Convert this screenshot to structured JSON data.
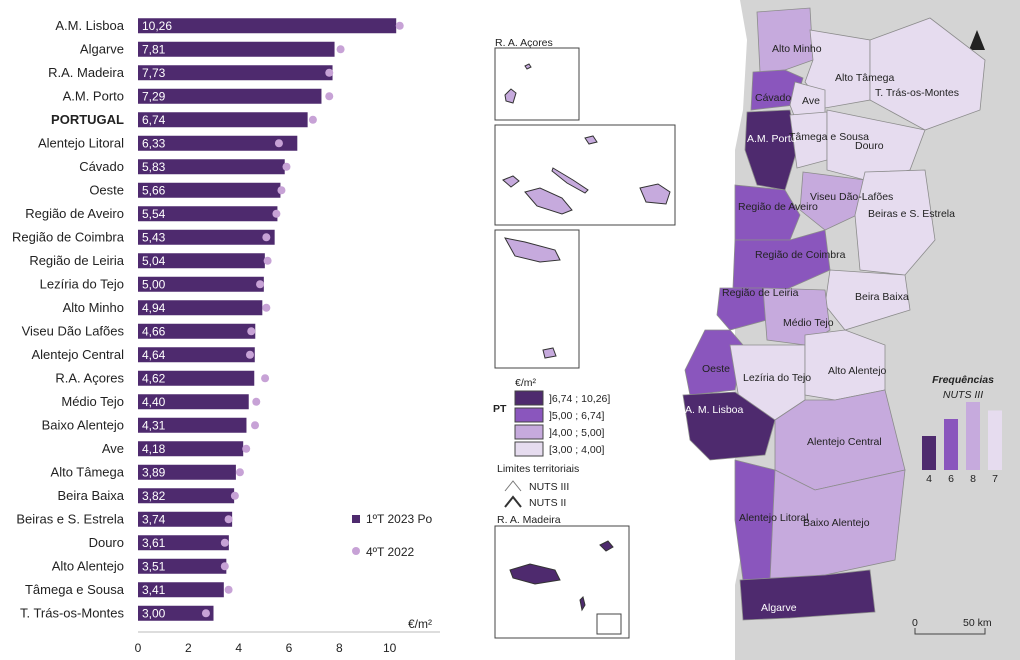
{
  "colors": {
    "bar": "#4e2a6e",
    "dot": "#c7a2d6",
    "class1": "#4e2a6e",
    "class2": "#8a56bd",
    "class3": "#c6aadd",
    "class4": "#e6dcef",
    "sea": "#d4d4d4"
  },
  "chart_data": {
    "type": "bar",
    "orientation": "horizontal",
    "categories": [
      "A.M. Lisboa",
      "Algarve",
      "R.A. Madeira",
      "A.M. Porto",
      "PORTUGAL",
      "Alentejo Litoral",
      "Cávado",
      "Oeste",
      "Região de Aveiro",
      "Região de Coimbra",
      "Região de Leiria",
      "Lezíria do Tejo",
      "Alto Minho",
      "Viseu Dão Lafões",
      "Alentejo Central",
      "R.A. Açores",
      "Médio Tejo",
      "Baixo Alentejo",
      "Ave",
      "Alto Tâmega",
      "Beira Baixa",
      "Beiras e S. Estrela",
      "Douro",
      "Alto Alentejo",
      "Tâmega e Sousa",
      "T. Trás-os-Montes"
    ],
    "bold_category": "PORTUGAL",
    "series": [
      {
        "name": "1ºT 2023 Po",
        "type": "bar",
        "values": [
          10.26,
          7.81,
          7.73,
          7.29,
          6.74,
          6.33,
          5.83,
          5.66,
          5.54,
          5.43,
          5.04,
          5.0,
          4.94,
          4.66,
          4.64,
          4.62,
          4.4,
          4.31,
          4.18,
          3.89,
          3.82,
          3.74,
          3.61,
          3.51,
          3.41,
          3.0
        ]
      },
      {
        "name": "4ºT 2022",
        "type": "dot",
        "values": [
          10.4,
          8.05,
          7.6,
          7.6,
          6.95,
          5.6,
          5.9,
          5.7,
          5.5,
          5.1,
          5.15,
          4.85,
          5.1,
          4.5,
          4.45,
          5.05,
          4.7,
          4.65,
          4.3,
          4.05,
          3.85,
          3.6,
          3.45,
          3.45,
          3.6,
          2.7
        ]
      }
    ],
    "value_labels": [
      "10,26",
      "7,81",
      "7,73",
      "7,29",
      "6,74",
      "6,33",
      "5,83",
      "5,66",
      "5,54",
      "5,43",
      "5,04",
      "5,00",
      "4,94",
      "4,66",
      "4,64",
      "4,62",
      "4,40",
      "4,31",
      "4,18",
      "3,89",
      "3,82",
      "3,74",
      "3,61",
      "3,51",
      "3,41",
      "3,00"
    ],
    "x_ticks": [
      "0",
      "2",
      "4",
      "6",
      "8",
      "10"
    ],
    "xlim": [
      0,
      12
    ],
    "unit": "€/m²",
    "legend_position": "lower-right"
  },
  "map": {
    "inset_azores": "R. A. Açores",
    "inset_madeira": "R. A. Madeira",
    "legend_unit": "€/m²",
    "pt_marker": "PT",
    "classes": [
      "]6,74 ; 10,26]",
      "]5,00 ; 6,74]",
      "]4,00 ; 5,00]",
      "[3,00 ; 4,00]"
    ],
    "limits_title": "Limites territoriais",
    "limits": [
      "NUTS III",
      "NUTS II"
    ],
    "freq_title": "Frequências",
    "freq_subtitle": "NUTS III",
    "frequencies": [
      4,
      6,
      8,
      7
    ],
    "freq_labels": [
      "4",
      "6",
      "8",
      "7"
    ],
    "scale_labels": [
      "0",
      "50 km"
    ],
    "regions": {
      "alto_minho": "Alto Minho",
      "cavado": "Cávado",
      "ave": "Ave",
      "alto_tamega": "Alto Tâmega",
      "tras_os_montes": "T. Trás-os-Montes",
      "am_porto": "A.M. Porto",
      "tamega_sousa": "Tâmega e Sousa",
      "douro": "Douro",
      "viseu": "Viseu Dão-Lafões",
      "aveiro": "Região de Aveiro",
      "beiras": "Beiras e S. Estrela",
      "coimbra": "Região de Coimbra",
      "leiria": "Região de Leiria",
      "beira_baixa": "Beira Baixa",
      "medio_tejo": "Médio Tejo",
      "oeste": "Oeste",
      "leziria": "Lezíria do Tejo",
      "alto_alentejo": "Alto Alentejo",
      "am_lisboa": "A. M. Lisboa",
      "alentejo_central": "Alentejo Central",
      "alentejo_litoral": "Alentejo Litoral",
      "baixo_alentejo": "Baixo Alentejo",
      "algarve": "Algarve"
    }
  }
}
